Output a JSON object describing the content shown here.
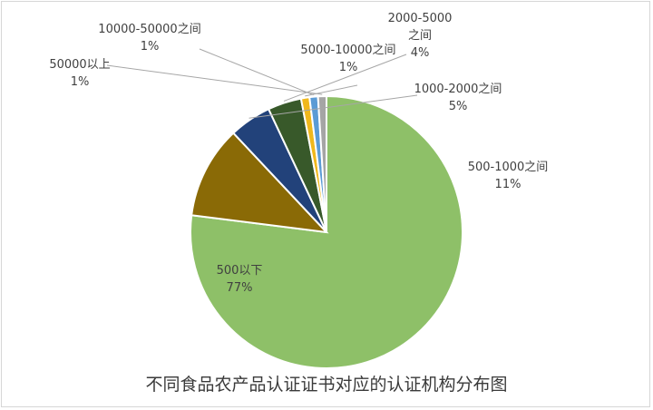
{
  "chart_data": {
    "type": "pie",
    "title": "不同食品农产品认证证书对应的认证机构分布图",
    "slices": [
      {
        "name": "500以下",
        "value": 77,
        "label": "77%",
        "color": "#8ec068"
      },
      {
        "name": "500-1000之间",
        "value": 11,
        "label": "11%",
        "color": "#8a6a06"
      },
      {
        "name": "1000-2000之间",
        "value": 5,
        "label": "5%",
        "color": "#22427a"
      },
      {
        "name": "2000-5000之间",
        "value": 4,
        "label": "4%",
        "color": "#38592a"
      },
      {
        "name": "5000-10000之间",
        "value": 1,
        "label": "1%",
        "color": "#f0b81c"
      },
      {
        "name": "10000-50000之间",
        "value": 1,
        "label": "1%",
        "color": "#5b9bd5"
      },
      {
        "name": "50000以上",
        "value": 1,
        "label": "1%",
        "color": "#a5a5a5"
      }
    ],
    "legend": "none"
  }
}
